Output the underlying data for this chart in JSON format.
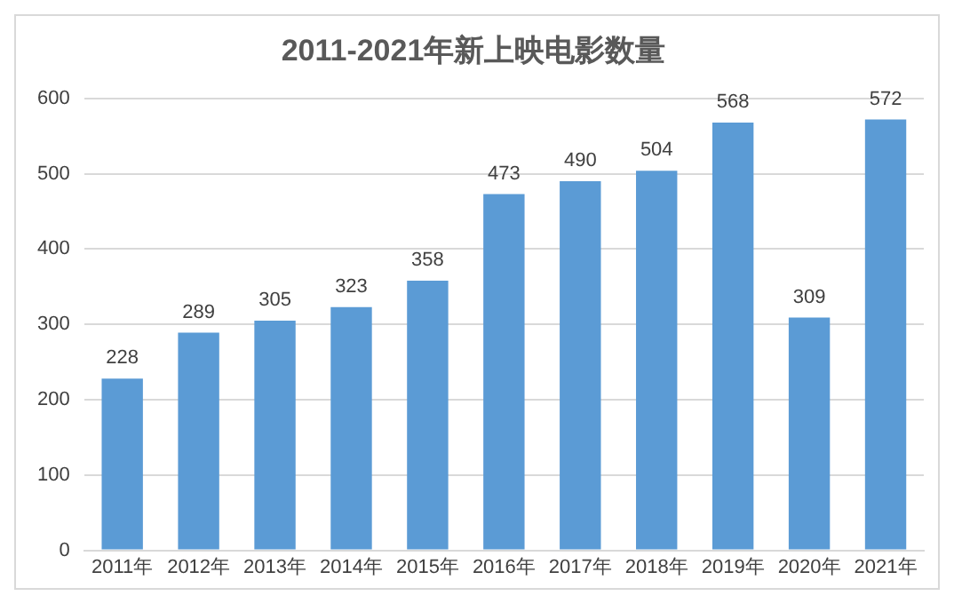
{
  "chart_data": {
    "type": "bar",
    "title": "2011-2021年新上映电影数量",
    "categories": [
      "2011年",
      "2012年",
      "2013年",
      "2014年",
      "2015年",
      "2016年",
      "2017年",
      "2018年",
      "2019年",
      "2020年",
      "2021年"
    ],
    "values": [
      228,
      289,
      305,
      323,
      358,
      473,
      490,
      504,
      568,
      309,
      572
    ],
    "color": "#5b9bd5",
    "ylim": [
      0,
      600
    ],
    "yticks": [
      0,
      100,
      200,
      300,
      400,
      500,
      600
    ],
    "grid": "y",
    "data_labels": true
  }
}
